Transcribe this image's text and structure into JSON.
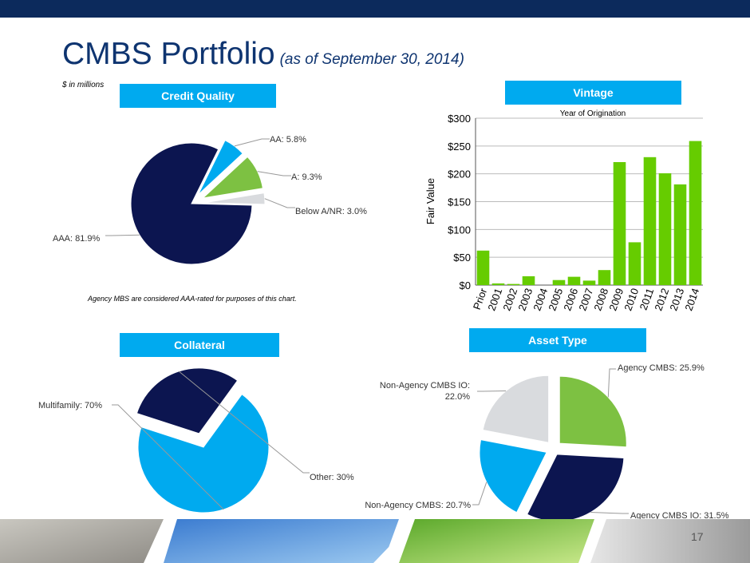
{
  "slide": {
    "title": "CMBS Portfolio",
    "title_sub": "(as of September 30, 2014)",
    "units": "$ in millions",
    "page_number": "17",
    "note": "Agency MBS are considered AAA-rated for purposes of this chart."
  },
  "headers": {
    "credit_quality": "Credit Quality",
    "vintage": "Vintage",
    "collateral": "Collateral",
    "asset_type": "Asset Type"
  },
  "colors": {
    "navy": "#0c1550",
    "green": "#7dc142",
    "light_gray": "#d9dbde",
    "blue": "#00aaef",
    "bar_green": "#66cc00",
    "header_blue": "#00aaef",
    "topbar": "#0c2a5c"
  },
  "chart_data": [
    {
      "type": "pie",
      "title": "Credit Quality",
      "slices": [
        {
          "label": "AAA: 81.9%",
          "value": 81.9,
          "color": "#0c1550"
        },
        {
          "label": "AA: 5.8%",
          "value": 5.8,
          "color": "#00aaef"
        },
        {
          "label": "A: 9.3%",
          "value": 9.3,
          "color": "#7dc142"
        },
        {
          "label": "Below A/NR: 3.0%",
          "value": 3.0,
          "color": "#d9dbde"
        }
      ]
    },
    {
      "type": "bar",
      "title": "Vintage",
      "subtitle": "Year of Origination",
      "ylabel": "Fair Value",
      "categories": [
        "Prior",
        "2001",
        "2002",
        "2003",
        "2004",
        "2005",
        "2006",
        "2007",
        "2008",
        "2009",
        "2010",
        "2011",
        "2012",
        "2013",
        "2014"
      ],
      "values": [
        62,
        3,
        2,
        16,
        0,
        9,
        15,
        8,
        27,
        221,
        77,
        230,
        201,
        181,
        259
      ],
      "ylim": [
        0,
        300
      ],
      "yticks": [
        "$0",
        "$50",
        "$100",
        "$150",
        "$200",
        "$250",
        "$300"
      ],
      "grid": true,
      "color": "#66cc00"
    },
    {
      "type": "pie",
      "title": "Collateral",
      "slices": [
        {
          "label": "Multifamily: 70%",
          "value": 70,
          "color": "#00aaef"
        },
        {
          "label": "Other: 30%",
          "value": 30,
          "color": "#0c1550"
        }
      ]
    },
    {
      "type": "pie",
      "title": "Asset Type",
      "slices": [
        {
          "label": "Agency CMBS: 25.9%",
          "value": 25.9,
          "color": "#7dc142"
        },
        {
          "label": "Agency CMBS IO: 31.5%",
          "value": 31.5,
          "color": "#0c1550"
        },
        {
          "label": "Non-Agency CMBS: 20.7%",
          "value": 20.7,
          "color": "#00aaef"
        },
        {
          "label": "Non-Agency CMBS IO: 22.0%",
          "value": 22.0,
          "color": "#d9dbde"
        }
      ]
    }
  ]
}
